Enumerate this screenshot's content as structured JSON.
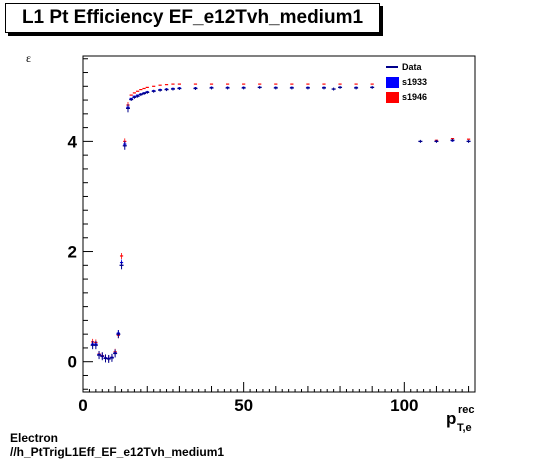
{
  "header": {
    "title": "L1 Pt Efficiency EF_e12Tvh_medium1"
  },
  "footer": {
    "line1": "Electron",
    "line2": "//h_PtTrigL1Eff_EF_e12Tvh_medium1"
  },
  "colors": {
    "data": "#00008b",
    "s1933": "#0000ff",
    "s1946": "#ff0000"
  },
  "chart_data": {
    "type": "scatter",
    "title": "L1 Pt Efficiency EF_e12Tvh_medium1",
    "xlabel": "p",
    "xlabel_sup": "rec",
    "xlabel_sub": "T,e",
    "ylabel": "ε",
    "xlim": [
      0,
      122
    ],
    "ylim": [
      -0.55,
      5.55
    ],
    "xticks": [
      0,
      50,
      100
    ],
    "yticks": [
      0,
      2,
      4
    ],
    "grid": false,
    "legend_position": "top-right",
    "series": [
      {
        "name": "Data",
        "color": "#00008b",
        "marker": "cross",
        "x": [
          3,
          4,
          5,
          6,
          7,
          8,
          9,
          10,
          11,
          12,
          13,
          14,
          15,
          16,
          17,
          18,
          19,
          20,
          22,
          24,
          26,
          28,
          30,
          35,
          40,
          45,
          50,
          55,
          60,
          65,
          70,
          75,
          78,
          80,
          85,
          90,
          95,
          100,
          105,
          110,
          115,
          120
        ],
        "y": [
          0.3,
          0.3,
          0.12,
          0.1,
          0.06,
          0.05,
          0.07,
          0.15,
          0.5,
          1.75,
          3.92,
          4.6,
          4.76,
          4.8,
          4.82,
          4.85,
          4.87,
          4.89,
          4.91,
          4.93,
          4.94,
          4.95,
          4.96,
          4.96,
          4.97,
          4.97,
          4.97,
          4.98,
          4.97,
          4.97,
          4.97,
          4.97,
          4.95,
          4.98,
          4.97,
          4.98,
          4.97,
          4.97,
          4.0,
          4.0,
          4.02,
          4.0
        ]
      },
      {
        "name": "s1933",
        "color": "#0000ff",
        "marker": "dash",
        "x": [
          3,
          4,
          5,
          6,
          7,
          8,
          9,
          10,
          11,
          12,
          13,
          14,
          15,
          16,
          17,
          18,
          19,
          20,
          22,
          24,
          26,
          28,
          30,
          35,
          40,
          45,
          50,
          55,
          60,
          65,
          70,
          75,
          80,
          85,
          90,
          95,
          100,
          105,
          110,
          115,
          120
        ],
        "y": [
          0.32,
          0.32,
          0.13,
          0.1,
          0.07,
          0.06,
          0.08,
          0.16,
          0.52,
          1.8,
          3.95,
          4.62,
          4.78,
          4.82,
          4.84,
          4.86,
          4.88,
          4.9,
          4.92,
          4.94,
          4.95,
          4.96,
          4.97,
          4.97,
          4.98,
          4.98,
          4.98,
          4.98,
          4.98,
          4.98,
          4.98,
          4.98,
          4.98,
          4.98,
          4.98,
          4.98,
          4.98,
          4.98,
          4.0,
          4.01,
          4.0
        ]
      },
      {
        "name": "s1946",
        "color": "#ff0000",
        "marker": "dash",
        "x": [
          3,
          4,
          5,
          6,
          7,
          8,
          9,
          10,
          11,
          12,
          13,
          14,
          15,
          16,
          17,
          18,
          19,
          20,
          22,
          24,
          26,
          28,
          30,
          35,
          40,
          45,
          50,
          55,
          60,
          65,
          70,
          75,
          80,
          85,
          90,
          95,
          100,
          105,
          110,
          115,
          120
        ],
        "y": [
          0.36,
          0.35,
          0.14,
          0.11,
          0.07,
          0.06,
          0.08,
          0.18,
          0.48,
          1.92,
          4.0,
          4.66,
          4.84,
          4.88,
          4.91,
          4.94,
          4.96,
          4.98,
          5.0,
          5.02,
          5.03,
          5.04,
          5.04,
          5.04,
          5.04,
          5.04,
          5.04,
          5.04,
          5.04,
          5.04,
          5.04,
          5.04,
          5.04,
          5.04,
          5.04,
          5.04,
          5.04,
          5.04,
          4.02,
          4.05,
          4.04
        ]
      }
    ]
  }
}
